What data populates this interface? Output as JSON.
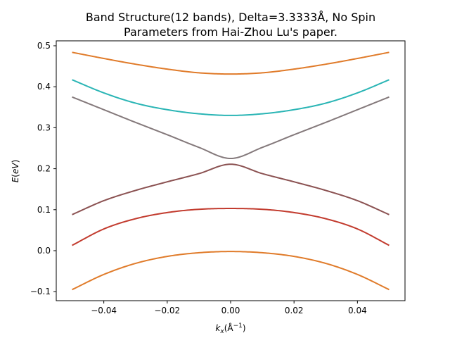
{
  "chart_data": {
    "type": "line",
    "title": "Band Structure(12 bands), Delta=3.3333Å, No Spin",
    "subtitle": "Parameters from Hai-Zhou Lu's paper.",
    "xlabel": "k_x(Å⁻¹)",
    "ylabel": "E(eV)",
    "xlim": [
      -0.055,
      0.055
    ],
    "ylim": [
      -0.122,
      0.512
    ],
    "xticks": [
      -0.04,
      -0.02,
      0.0,
      0.02,
      0.04
    ],
    "xtick_labels": [
      "−0.04",
      "−0.02",
      "0.00",
      "0.02",
      "0.04"
    ],
    "yticks": [
      -0.1,
      0.0,
      0.1,
      0.2,
      0.3,
      0.4,
      0.5
    ],
    "ytick_labels": [
      "−0.1",
      "0.0",
      "0.1",
      "0.2",
      "0.3",
      "0.4",
      "0.5"
    ],
    "grid": false,
    "x": [
      -0.05,
      -0.04,
      -0.03,
      -0.02,
      -0.01,
      0.0,
      0.01,
      0.02,
      0.03,
      0.04,
      0.05
    ],
    "series": [
      {
        "color": "#e07b2a",
        "values": [
          0.484,
          0.469,
          0.455,
          0.443,
          0.434,
          0.431,
          0.434,
          0.443,
          0.455,
          0.469,
          0.484
        ]
      },
      {
        "color": "#2ab5b5",
        "values": [
          0.417,
          0.385,
          0.36,
          0.344,
          0.334,
          0.33,
          0.334,
          0.344,
          0.36,
          0.385,
          0.417
        ]
      },
      {
        "color": "#84797b",
        "values": [
          0.375,
          0.344,
          0.313,
          0.283,
          0.252,
          0.225,
          0.252,
          0.283,
          0.313,
          0.344,
          0.375
        ]
      },
      {
        "color": "#8b5252",
        "values": [
          0.088,
          0.122,
          0.147,
          0.168,
          0.188,
          0.211,
          0.188,
          0.168,
          0.147,
          0.122,
          0.088
        ]
      },
      {
        "color": "#c23b2e",
        "values": [
          0.013,
          0.053,
          0.078,
          0.093,
          0.101,
          0.103,
          0.101,
          0.093,
          0.078,
          0.053,
          0.013
        ]
      },
      {
        "color": "#e07b2a",
        "values": [
          -0.095,
          -0.058,
          -0.031,
          -0.014,
          -0.005,
          -0.002,
          -0.005,
          -0.014,
          -0.031,
          -0.058,
          -0.095
        ]
      }
    ]
  }
}
